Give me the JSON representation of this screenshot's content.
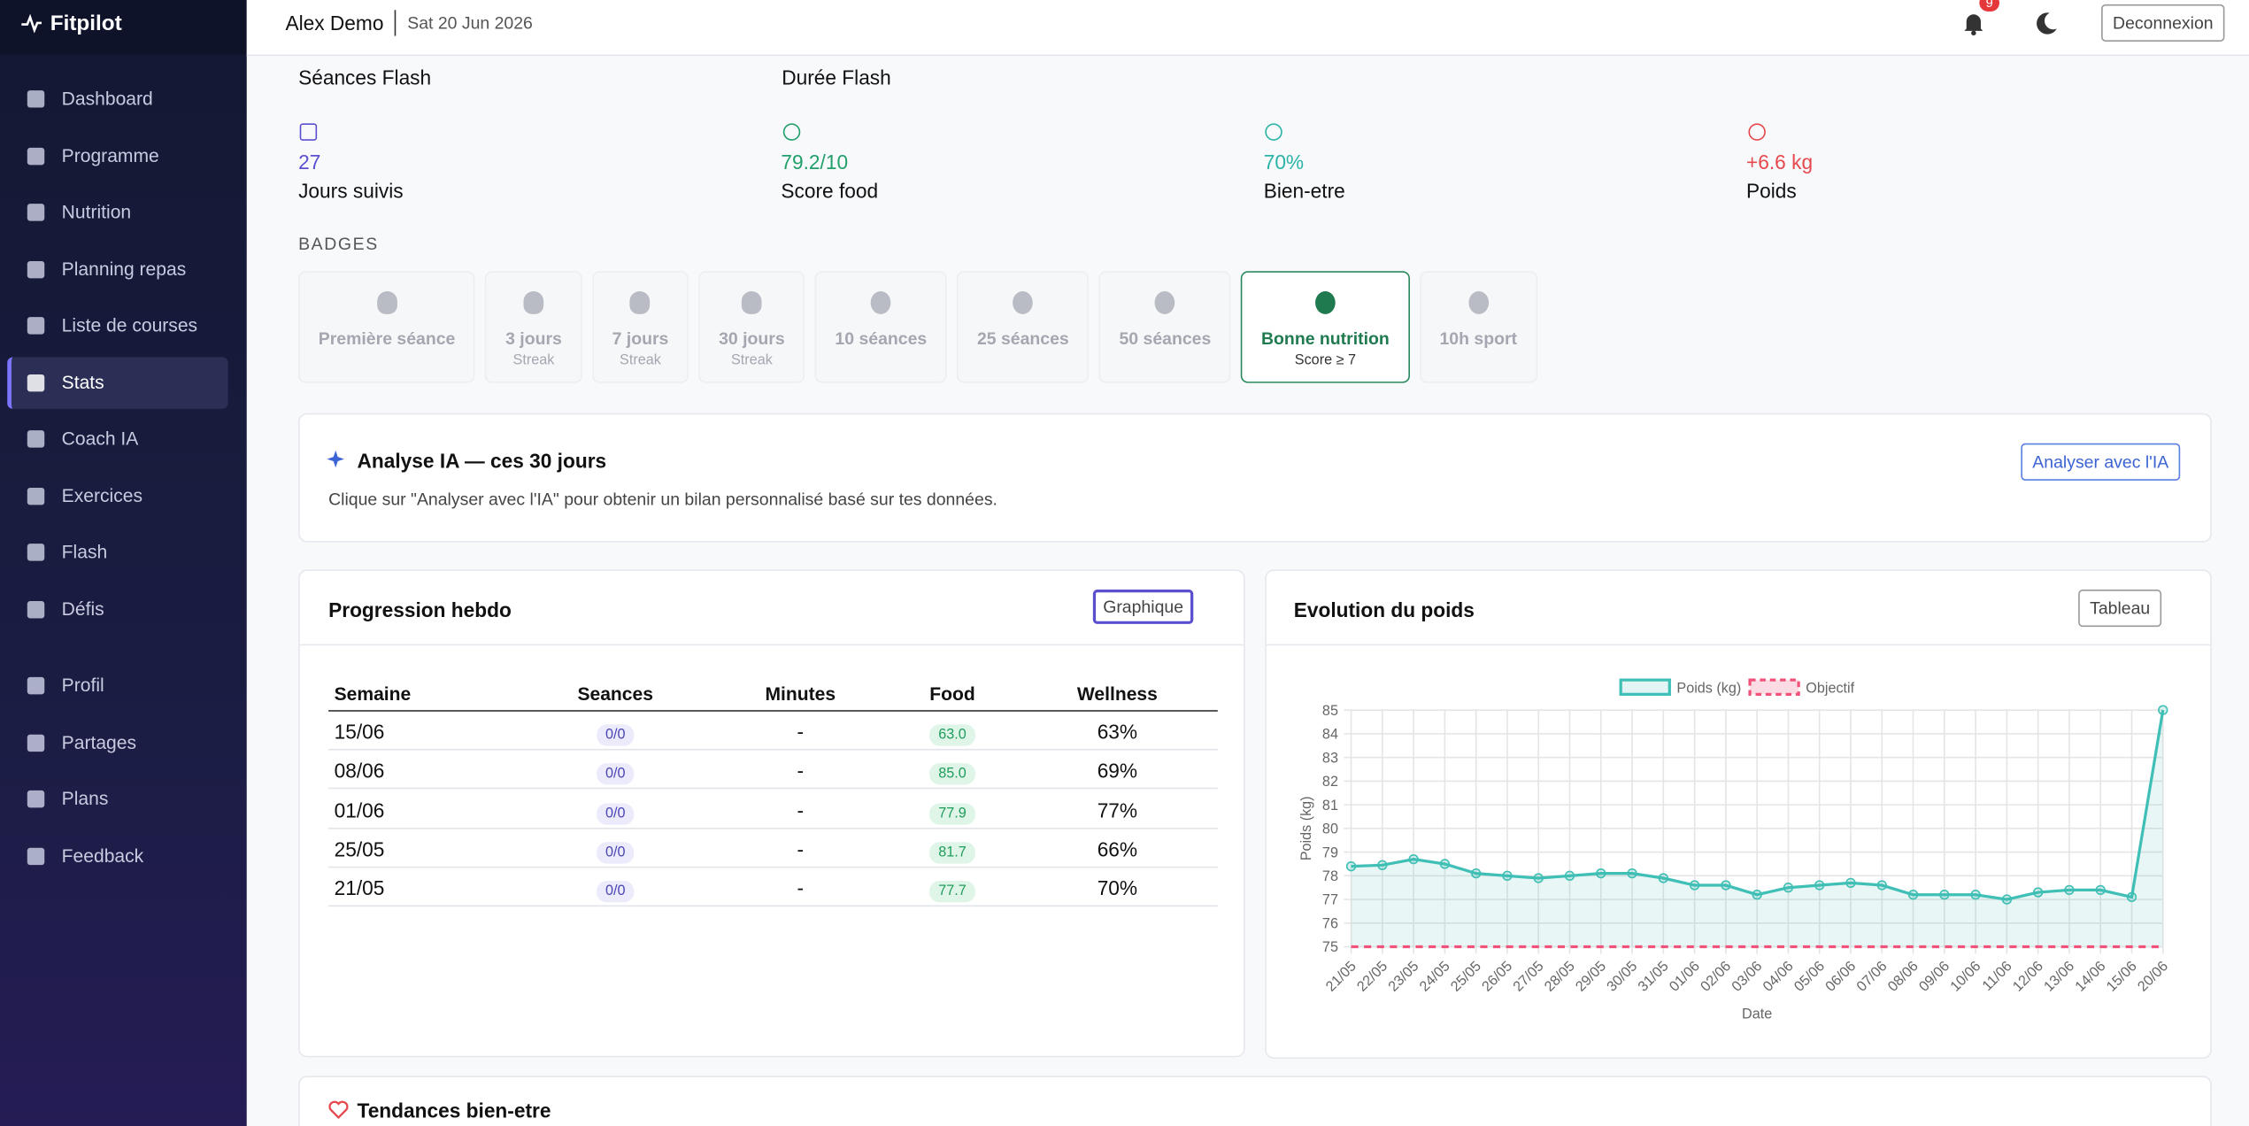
{
  "sidebar": {
    "brand": "Fitpilot",
    "nav": [
      "Dashboard",
      "Programme",
      "Nutrition",
      "Planning repas",
      "Liste de courses",
      "Stats",
      "Coach IA",
      "Exercices",
      "Flash",
      "Défis"
    ],
    "nav2": [
      "Profil",
      "Partages",
      "Plans",
      "Feedback"
    ]
  },
  "header": {
    "user": "Alex Demo",
    "date": "Sat 20 Jun 2026",
    "notifications": 9,
    "logout": "Deconnexion"
  },
  "flash": {
    "sessions_title": "Séances Flash",
    "duration_title": "Durée Flash"
  },
  "stats": [
    {
      "value": "27",
      "label": "Jours suivis",
      "color": "#5a4fcf"
    },
    {
      "value": "79.2/10",
      "label": "Score food",
      "color": "#22a06b"
    },
    {
      "value": "70%",
      "label": "Bien-etre",
      "color": "#2bb3a8"
    },
    {
      "value": "+6.6 kg",
      "label": "Poids",
      "color": "#e5484d"
    }
  ],
  "badges": {
    "title": "BADGES",
    "items": [
      {
        "label": "Première séance"
      },
      {
        "label": "3 jours",
        "sub": "Streak"
      },
      {
        "label": "7 jours",
        "sub": "Streak"
      },
      {
        "label": "30 jours",
        "sub": "Streak"
      },
      {
        "label": "10 séances"
      },
      {
        "label": "25 séances"
      },
      {
        "label": "50 séances"
      },
      {
        "label": "Bonne nutrition",
        "sub": "Score ≥ 7",
        "earned": true
      },
      {
        "label": "10h sport"
      }
    ]
  },
  "analysis": {
    "title": "Analyse IA — ces 30 jours",
    "button": "Analyser avec l'IA",
    "text": "Clique sur \"Analyser avec l'IA\" pour obtenir un bilan personnalisé basé sur tes données."
  },
  "progress": {
    "title": "Progression hebdo",
    "button": "Graphique",
    "table": {
      "header": [
        "Semaine",
        "Seances",
        "Minutes",
        "Food",
        "Wellness"
      ],
      "rows": [
        [
          "15/06",
          "0/0",
          "-",
          "63.0",
          "63%"
        ],
        [
          "08/06",
          "0/0",
          "-",
          "85.0",
          "69%"
        ],
        [
          "01/06",
          "0/0",
          "-",
          "77.9",
          "77%"
        ],
        [
          "25/05",
          "0/0",
          "-",
          "81.7",
          "66%"
        ],
        [
          "21/05",
          "0/0",
          "-",
          "77.7",
          "70%"
        ]
      ]
    }
  },
  "weight": {
    "title": "Evolution du poids",
    "button": "Tableau",
    "chart_data": {
      "type": "line",
      "x_label": "Date",
      "y_label": "Poids (kg)",
      "categories": [
        "21/05",
        "22/05",
        "23/05",
        "24/05",
        "25/05",
        "26/05",
        "27/05",
        "28/05",
        "29/05",
        "30/05",
        "31/05",
        "01/06",
        "02/06",
        "03/06",
        "04/06",
        "05/06",
        "06/06",
        "07/06",
        "08/06",
        "09/06",
        "10/06",
        "11/06",
        "12/06",
        "13/06",
        "14/06",
        "15/06",
        "20/06"
      ],
      "series": [
        {
          "name": "Poids (kg)",
          "color": "#3fbfb5",
          "values": [
            78.4,
            78.45,
            78.7,
            78.5,
            78.1,
            78.0,
            77.9,
            78.0,
            78.1,
            78.1,
            77.9,
            77.6,
            77.6,
            77.2,
            77.5,
            77.6,
            77.7,
            77.6,
            77.2,
            77.2,
            77.2,
            77.0,
            77.3,
            77.4,
            77.4,
            77.1,
            85.0
          ]
        },
        {
          "name": "Objectif",
          "color": "#f0527a",
          "values": [
            75,
            75,
            75,
            75,
            75,
            75,
            75,
            75,
            75,
            75,
            75,
            75,
            75,
            75,
            75,
            75,
            75,
            75,
            75,
            75,
            75,
            75,
            75,
            75,
            75,
            75,
            75
          ]
        }
      ],
      "ylim": [
        75,
        85
      ],
      "yticks": [
        75,
        76,
        77,
        78,
        79,
        80,
        81,
        82,
        83,
        84,
        85
      ],
      "grid": true
    }
  },
  "trends": {
    "title": "Tendances bien-etre"
  }
}
